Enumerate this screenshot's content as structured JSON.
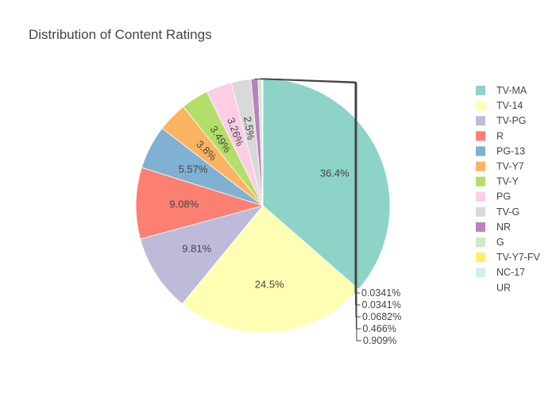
{
  "chart_data": {
    "type": "pie",
    "title": "Distribution of Content Ratings",
    "legend_position": "right",
    "direction": "clockwise",
    "slices": [
      {
        "label": "TV-MA",
        "percent": 36.4,
        "text": "36.4%",
        "color": "#8dd3c7"
      },
      {
        "label": "TV-14",
        "percent": 24.5,
        "text": "24.5%",
        "color": "#ffffb3"
      },
      {
        "label": "TV-PG",
        "percent": 9.81,
        "text": "9.81%",
        "color": "#bebada"
      },
      {
        "label": "R",
        "percent": 9.08,
        "text": "9.08%",
        "color": "#fb8072"
      },
      {
        "label": "PG-13",
        "percent": 5.57,
        "text": "5.57%",
        "color": "#80b1d3"
      },
      {
        "label": "TV-Y7",
        "percent": 3.8,
        "text": "3.8%",
        "color": "#fdb462"
      },
      {
        "label": "TV-Y",
        "percent": 3.49,
        "text": "3.49%",
        "color": "#b3de69"
      },
      {
        "label": "PG",
        "percent": 3.26,
        "text": "3.26%",
        "color": "#fccde5"
      },
      {
        "label": "TV-G",
        "percent": 2.5,
        "text": "2.5%",
        "color": "#d9d9d9"
      },
      {
        "label": "NR",
        "percent": 0.909,
        "text": "0.909%",
        "color": "#bc80bd"
      },
      {
        "label": "G",
        "percent": 0.466,
        "text": "0.466%",
        "color": "#ccebc5"
      },
      {
        "label": "TV-Y7-FV",
        "percent": 0.0682,
        "text": "0.0682%",
        "color": "#ffed6f"
      },
      {
        "label": "NC-17",
        "percent": 0.0341,
        "text": "0.0341%",
        "color": "#d5f0ec"
      },
      {
        "label": "UR",
        "percent": 0.0341,
        "text": "0.0341%",
        "color": "#ffffff"
      }
    ]
  }
}
